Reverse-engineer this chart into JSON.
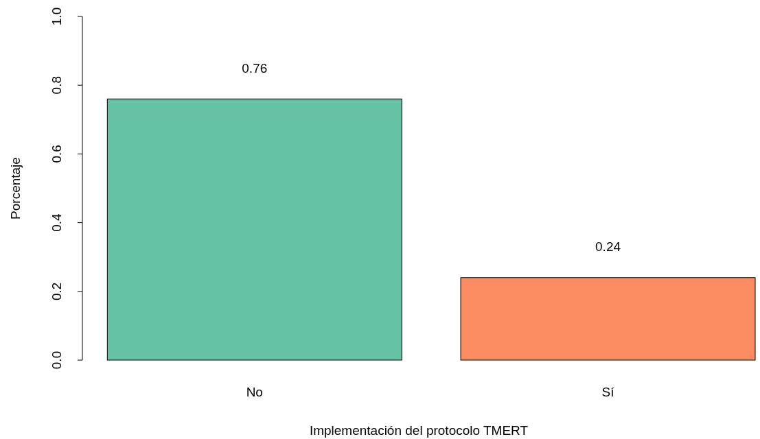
{
  "chart_data": {
    "type": "bar",
    "xlabel": "Implementación del protocolo TMERT",
    "ylabel": "Porcentaje",
    "categories": [
      "No",
      "Sí"
    ],
    "values": [
      0.76,
      0.24
    ],
    "colors": [
      "#66c2a5",
      "#fc8d62"
    ],
    "ylim": [
      0,
      1
    ],
    "yticks": [
      {
        "value": 0,
        "label": "0.0"
      },
      0.2,
      0.4,
      0.6,
      0.8,
      {
        "value": 1,
        "label": "1.0"
      }
    ],
    "data_labels": true
  }
}
